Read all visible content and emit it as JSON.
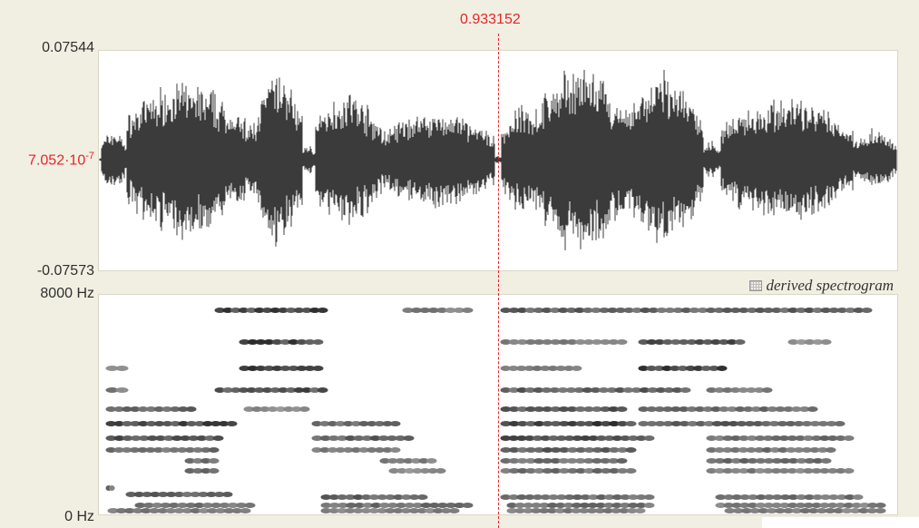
{
  "cursor": {
    "time_label": "0.933152",
    "color": "#e8242a"
  },
  "waveform": {
    "max_label": "0.07544",
    "center_label": "7.052·10",
    "center_label_exp": "-7",
    "min_label": "-0.07573",
    "color": "#3b3b3b"
  },
  "spectrogram": {
    "top_label": "8000 Hz",
    "bottom_label": "0 Hz",
    "title": "derived spectrogram"
  }
}
